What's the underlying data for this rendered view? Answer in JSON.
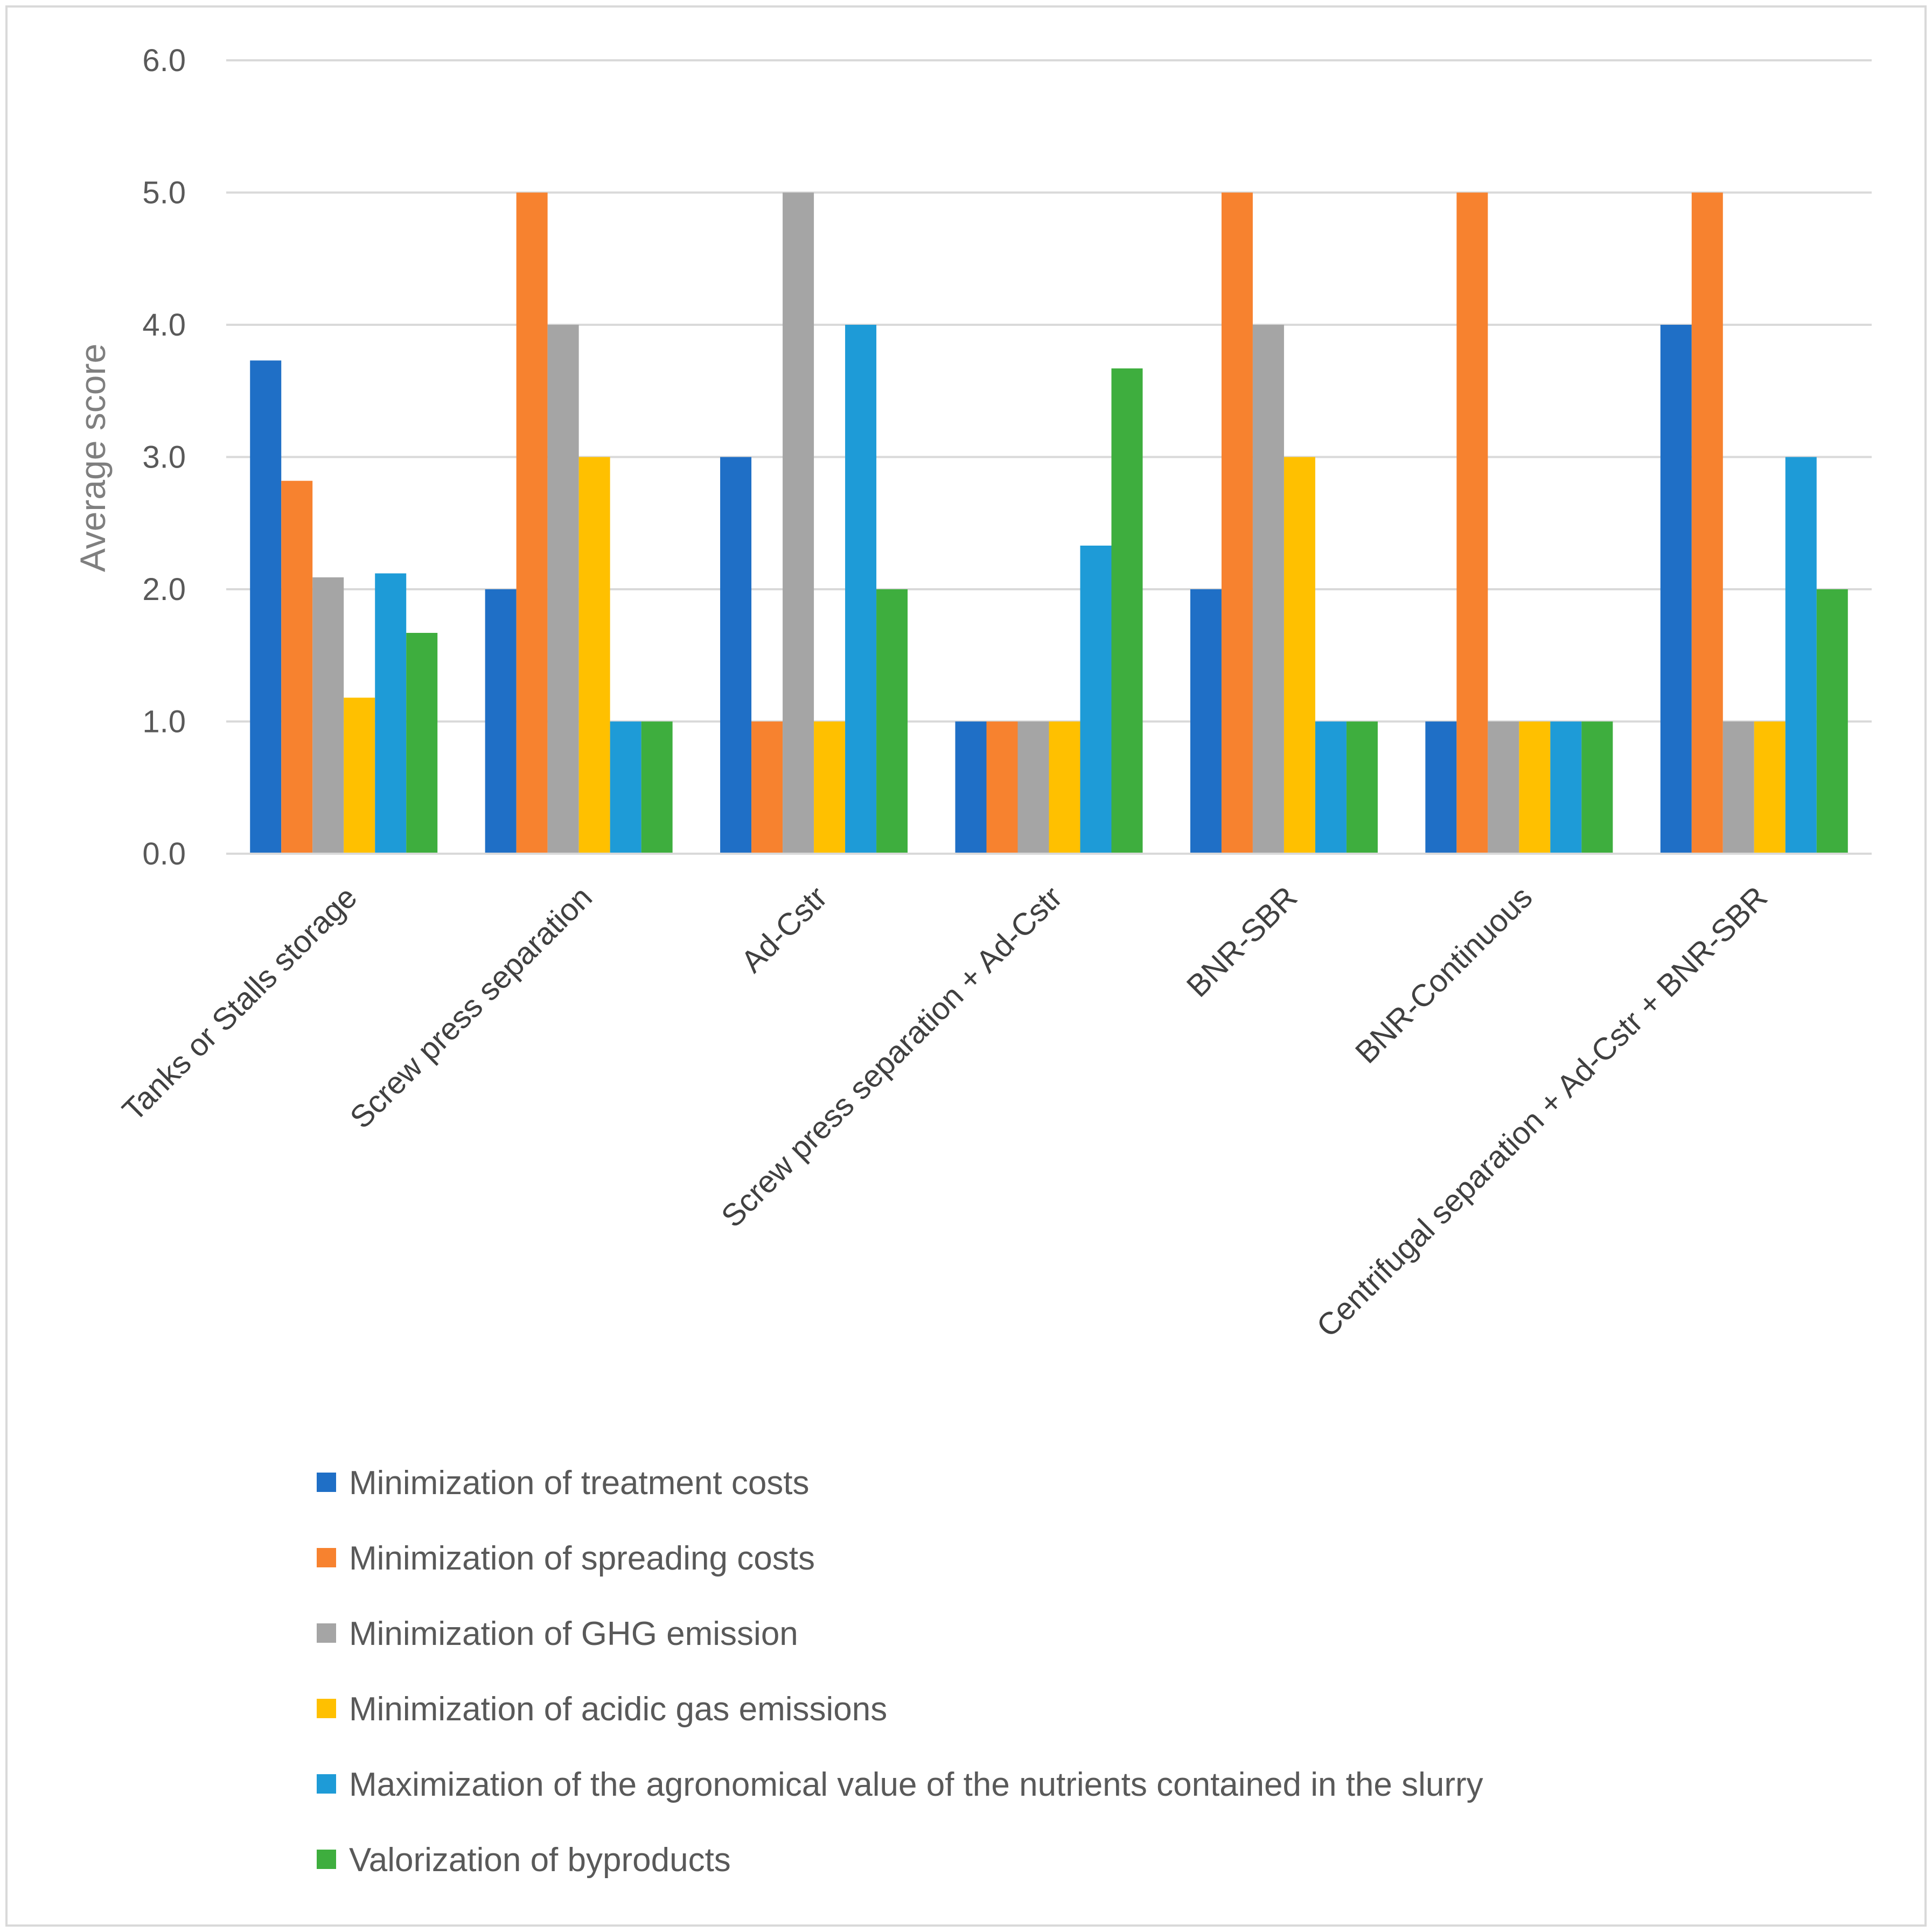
{
  "chart_data": {
    "type": "bar",
    "title": "",
    "xlabel": "",
    "ylabel": "Average score",
    "ylim": [
      0,
      6
    ],
    "yticks": [
      "0.0",
      "1.0",
      "2.0",
      "3.0",
      "4.0",
      "5.0",
      "6.0"
    ],
    "grid": true,
    "legend_position": "bottom",
    "categories": [
      "Tanks or Stalls storage",
      "Screw press separation",
      "Ad-Cstr",
      "Screw press separation + Ad-Cstr",
      "BNR-SBR",
      "BNR-Continuous",
      "Centrifugal separation + Ad-Cstr + BNR-SBR"
    ],
    "series": [
      {
        "name": "Minimization of treatment costs",
        "color": "#1f6fc6",
        "values": [
          3.73,
          2,
          3,
          1,
          2,
          1,
          4
        ]
      },
      {
        "name": "Minimization of spreading costs",
        "color": "#f7822f",
        "values": [
          2.82,
          5,
          1,
          1,
          5,
          5,
          5
        ]
      },
      {
        "name": "Minimization of GHG emission",
        "color": "#a5a5a5",
        "values": [
          2.09,
          4,
          5,
          1,
          4,
          1,
          1
        ]
      },
      {
        "name": "Minimization of acidic gas emissions",
        "color": "#ffc000",
        "values": [
          1.18,
          3,
          1,
          1,
          3,
          1,
          1
        ]
      },
      {
        "name": "Maximization of the agronomical value of the nutrients contained in the slurry",
        "color": "#1e9bd7",
        "values": [
          2.12,
          1,
          4,
          2.33,
          1,
          1,
          3
        ]
      },
      {
        "name": "Valorization of byproducts",
        "color": "#3eae3e",
        "values": [
          1.67,
          1,
          2,
          3.67,
          1,
          1,
          2
        ]
      }
    ]
  }
}
